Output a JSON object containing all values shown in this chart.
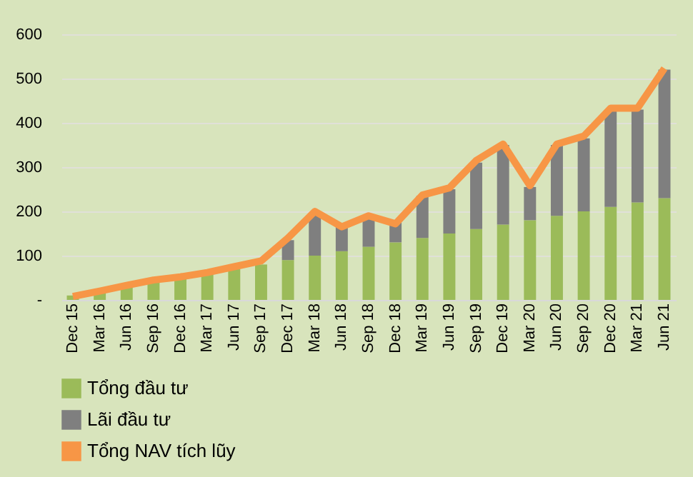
{
  "chart_data": {
    "type": "bar",
    "stacked": true,
    "categories": [
      "Dec 15",
      "Mar 16",
      "Jun 16",
      "Sep 16",
      "Dec 16",
      "Mar 17",
      "Jun 17",
      "Sep 17",
      "Dec 17",
      "Mar 18",
      "Jun 18",
      "Sep 18",
      "Dec 18",
      "Mar 19",
      "Jun 19",
      "Sep 19",
      "Dec 19",
      "Mar 20",
      "Jun 20",
      "Sep 20",
      "Dec 20",
      "Mar 21",
      "Jun 21"
    ],
    "series": [
      {
        "name": "Tổng đầu tư",
        "color": "#9bbb59",
        "values": [
          10,
          20,
          30,
          40,
          50,
          60,
          70,
          80,
          90,
          100,
          110,
          120,
          130,
          140,
          150,
          160,
          170,
          180,
          190,
          200,
          210,
          220,
          230
        ]
      },
      {
        "name": "Lãi đầu tư",
        "color": "#7f7f7f",
        "values": [
          0,
          0,
          0,
          0,
          0,
          0,
          0,
          null,
          45,
          95,
          55,
          70,
          45,
          95,
          100,
          150,
          180,
          75,
          160,
          165,
          220,
          210,
          290
        ]
      },
      {
        "name": "Tổng NAV tích lũy",
        "color": "#f79646",
        "type": "line",
        "values": [
          8,
          20,
          33,
          45,
          52,
          62,
          75,
          88,
          140,
          200,
          165,
          190,
          172,
          237,
          253,
          315,
          352,
          258,
          352,
          370,
          433,
          433,
          523
        ]
      }
    ],
    "ylim": [
      0,
      600
    ],
    "yticks": [
      {
        "value": 0,
        "label": "-"
      },
      100,
      200,
      300,
      400,
      500,
      600
    ],
    "grid": "y",
    "legend": "bottom"
  }
}
